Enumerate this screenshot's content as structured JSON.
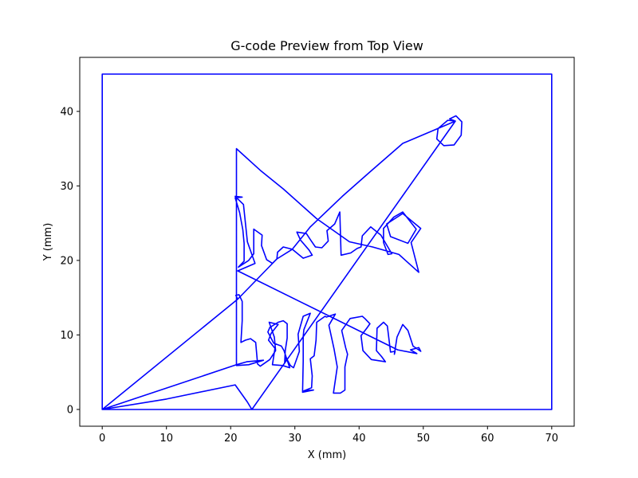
{
  "chart_data": {
    "type": "line",
    "title": "G-code Preview from Top View",
    "xlabel": "X (mm)",
    "ylabel": "Y (mm)",
    "xlim": [
      -3.5,
      73.5
    ],
    "ylim": [
      -2.25,
      47.25
    ],
    "xticks": [
      0,
      10,
      20,
      30,
      40,
      50,
      60,
      70
    ],
    "yticks": [
      0,
      10,
      20,
      30,
      40
    ],
    "grid": false,
    "line_color": "#0000ff",
    "series": [
      {
        "points": [
          [
            0,
            0
          ],
          [
            0,
            45
          ],
          [
            70,
            45
          ],
          [
            70,
            0
          ],
          [
            0,
            0
          ],
          [
            21.1,
            14.8
          ],
          [
            27.2,
            20.2
          ],
          [
            29.6,
            21.5
          ],
          [
            32.4,
            24.5
          ],
          [
            37.4,
            28.6
          ],
          [
            41.6,
            31.8
          ],
          [
            46.8,
            35.7
          ],
          [
            55,
            38.7
          ],
          [
            54.1,
            39
          ],
          [
            55.1,
            39.4
          ],
          [
            56,
            38.6
          ],
          [
            55.9,
            36.8
          ],
          [
            54.8,
            35.5
          ],
          [
            53.2,
            35.4
          ],
          [
            52.1,
            36.3
          ],
          [
            52.3,
            37.7
          ],
          [
            53.8,
            38.8
          ],
          [
            55,
            38.7
          ],
          [
            23.3,
            0
          ],
          [
            22.6,
            1
          ],
          [
            20.7,
            3.3
          ],
          [
            10,
            1.4
          ],
          [
            0,
            0
          ],
          [
            20.9,
            6
          ],
          [
            22.5,
            6.4
          ],
          [
            25.1,
            6.6
          ],
          [
            22.8,
            6
          ],
          [
            20.9,
            5.9
          ],
          [
            20.9,
            35
          ],
          [
            24.6,
            32.1
          ],
          [
            28.2,
            29.6
          ],
          [
            33.4,
            25.6
          ],
          [
            38.5,
            22.5
          ],
          [
            42.1,
            21.8
          ],
          [
            46.2,
            20.8
          ],
          [
            49.3,
            18.4
          ],
          [
            48.1,
            22.4
          ],
          [
            49.6,
            24.3
          ],
          [
            46.8,
            26.3
          ],
          [
            44.3,
            24.9
          ],
          [
            44.9,
            23.2
          ],
          [
            47.6,
            22.3
          ],
          [
            48.9,
            24.2
          ],
          [
            46.8,
            26.5
          ],
          [
            45.4,
            25.8
          ],
          [
            43.8,
            24.3
          ],
          [
            43.8,
            22.4
          ],
          [
            44.5,
            20.8
          ],
          [
            45.1,
            20.9
          ],
          [
            43.4,
            23.4
          ],
          [
            41.8,
            24.5
          ],
          [
            40.5,
            23.3
          ],
          [
            40.3,
            21.8
          ],
          [
            39.7,
            21.6
          ],
          [
            38.7,
            21
          ],
          [
            37.2,
            20.7
          ],
          [
            37,
            26.5
          ],
          [
            36.2,
            24.9
          ],
          [
            35,
            24
          ],
          [
            35.2,
            22.6
          ],
          [
            34.2,
            21.7
          ],
          [
            33.2,
            21.8
          ],
          [
            32.4,
            22.8
          ],
          [
            31.8,
            23.6
          ],
          [
            30.3,
            23.8
          ],
          [
            30.9,
            22.7
          ],
          [
            32.2,
            21.4
          ],
          [
            32.7,
            20.7
          ],
          [
            31.3,
            20.3
          ],
          [
            29.6,
            21.5
          ],
          [
            28.2,
            21.8
          ],
          [
            27.3,
            21.1
          ],
          [
            27.2,
            20.2
          ],
          [
            26.5,
            19.6
          ],
          [
            25.6,
            20.1
          ],
          [
            24.8,
            22
          ],
          [
            24.9,
            23.4
          ],
          [
            23.6,
            24.2
          ],
          [
            23.6,
            20.9
          ],
          [
            22.8,
            20
          ],
          [
            21.2,
            19.1
          ],
          [
            22.1,
            19.9
          ],
          [
            22.1,
            22.3
          ],
          [
            21.9,
            24.1
          ],
          [
            21.4,
            26.4
          ],
          [
            20.7,
            28.4
          ],
          [
            21.8,
            28.5
          ],
          [
            20.7,
            28.6
          ],
          [
            22,
            27.5
          ],
          [
            22.6,
            22.5
          ],
          [
            23.8,
            19.6
          ],
          [
            21.1,
            18.6
          ],
          [
            46,
            8
          ],
          [
            49,
            7.5
          ],
          [
            48,
            8
          ],
          [
            49.3,
            8.3
          ],
          [
            49.6,
            7.8
          ],
          [
            48.4,
            8.5
          ],
          [
            47.6,
            10.6
          ],
          [
            46.8,
            11.4
          ],
          [
            45.9,
            9.7
          ],
          [
            45.5,
            7.4
          ],
          [
            45.6,
            7.8
          ],
          [
            44.9,
            7.7
          ],
          [
            44.4,
            11.2
          ],
          [
            43.8,
            11.7
          ],
          [
            42.8,
            10.9
          ],
          [
            42.7,
            7.9
          ],
          [
            43.5,
            7.1
          ],
          [
            44.1,
            6.4
          ],
          [
            41.9,
            6.7
          ],
          [
            40.6,
            7.9
          ],
          [
            40.3,
            9.9
          ],
          [
            41.2,
            10.9
          ],
          [
            41.7,
            11.5
          ],
          [
            40.9,
            12.2
          ],
          [
            40.5,
            12.5
          ],
          [
            38.6,
            12.2
          ],
          [
            37.3,
            10.6
          ],
          [
            37.9,
            8.3
          ],
          [
            38.2,
            7.4
          ],
          [
            37.8,
            5.7
          ],
          [
            37.8,
            2.6
          ],
          [
            37.1,
            2.2
          ],
          [
            36,
            2.2
          ],
          [
            36.6,
            5.7
          ],
          [
            36.1,
            8.1
          ],
          [
            35.3,
            11.3
          ],
          [
            36.3,
            12.8
          ],
          [
            34.9,
            12.4
          ],
          [
            34.7,
            12.5
          ],
          [
            33.4,
            11.7
          ],
          [
            33.3,
            9.3
          ],
          [
            33,
            7.2
          ],
          [
            32.4,
            6.8
          ],
          [
            32.7,
            4.5
          ],
          [
            32.6,
            2.9
          ],
          [
            31.4,
            2.5
          ],
          [
            32.9,
            2.6
          ],
          [
            31.2,
            2.3
          ],
          [
            31.3,
            6.5
          ],
          [
            31.3,
            9.8
          ],
          [
            31.4,
            10.7
          ],
          [
            32.4,
            12.9
          ],
          [
            31.3,
            12.5
          ],
          [
            30.5,
            10.1
          ],
          [
            30.7,
            7.8
          ],
          [
            29.8,
            5.6
          ],
          [
            29.3,
            5.9
          ],
          [
            28.6,
            7
          ],
          [
            28.4,
            6.2
          ],
          [
            28.5,
            7.9
          ],
          [
            28.8,
            9.6
          ],
          [
            28.8,
            11.5
          ],
          [
            28.2,
            11.9
          ],
          [
            27.4,
            11.7
          ],
          [
            26.1,
            11
          ],
          [
            25.8,
            10.4
          ],
          [
            26.7,
            8.9
          ],
          [
            27.9,
            8.5
          ],
          [
            28.3,
            7.9
          ],
          [
            29.2,
            5.6
          ],
          [
            28.1,
            5.9
          ],
          [
            26.5,
            6
          ],
          [
            26.9,
            8.2
          ],
          [
            25.9,
            9.3
          ],
          [
            26.3,
            10.2
          ],
          [
            27.4,
            11.4
          ],
          [
            26,
            11.7
          ],
          [
            26.8,
            9.7
          ],
          [
            27,
            7.9
          ],
          [
            26.1,
            6.7
          ],
          [
            24.6,
            5.8
          ],
          [
            24.2,
            6.1
          ],
          [
            23.9,
            9
          ],
          [
            23.1,
            9.5
          ],
          [
            22.3,
            9.3
          ],
          [
            21.6,
            9
          ],
          [
            21.8,
            11.9
          ],
          [
            21.8,
            14.5
          ],
          [
            21.3,
            15.4
          ],
          [
            20.8,
            15.3
          ],
          [
            21.1,
            14.8
          ]
        ]
      }
    ]
  }
}
